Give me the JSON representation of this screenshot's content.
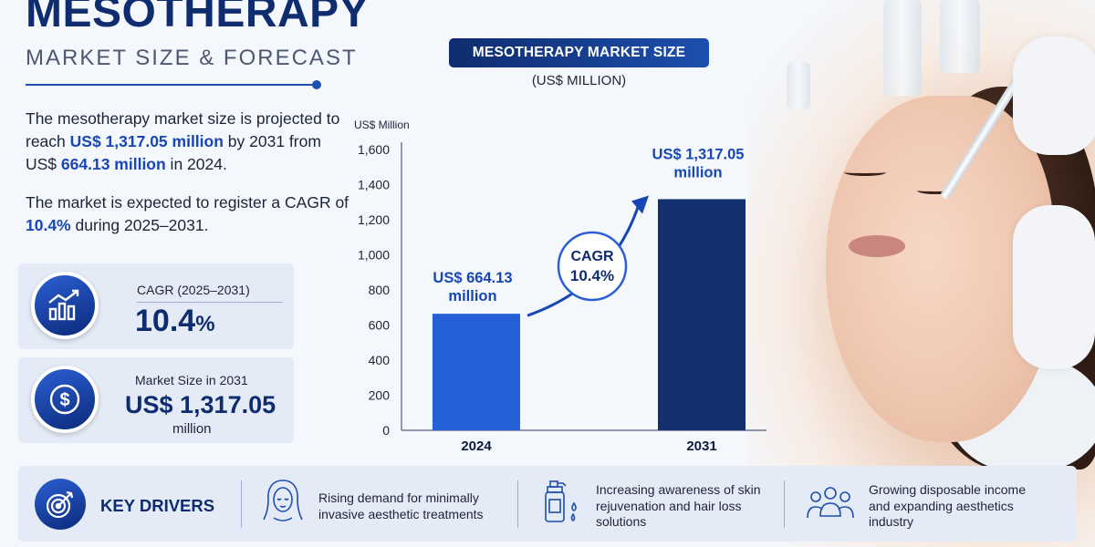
{
  "header": {
    "title": "MESOTHERAPY",
    "subtitle": "MARKET SIZE & FORECAST"
  },
  "intro": {
    "p1_a": "The mesotherapy market size is projected to reach ",
    "p1_b": "US$ 1,317.05 million",
    "p1_c": " by 2031 from US$ ",
    "p1_d": "664.13 million",
    "p1_e": " in 2024.",
    "p2_a": "The market is expected to register a CAGR of ",
    "p2_b": "10.4%",
    "p2_c": " during 2025–2031."
  },
  "cards": {
    "cagr_label": "CAGR (2025–2031)",
    "cagr_value": "10.4",
    "cagr_unit": "%",
    "size_label": "Market Size in 2031",
    "size_value": "US$ 1,317.05",
    "size_unit": "million"
  },
  "chart_header": {
    "title": "MESOTHERAPY MARKET SIZE",
    "unit": "(US$ MILLION)"
  },
  "chart_data": {
    "type": "bar",
    "ylabel": "US$ Million",
    "categories": [
      "2024",
      "2031"
    ],
    "values": [
      664.13,
      1317.05
    ],
    "value_labels": [
      [
        "US$ 664.13",
        "million"
      ],
      [
        "US$ 1,317.05",
        "million"
      ]
    ],
    "yticks": [
      "0",
      "200",
      "400",
      "600",
      "800",
      "1,000",
      "1,200",
      "1,400",
      "1,600"
    ],
    "ylim": [
      0,
      1600
    ],
    "cagr_badge": [
      "CAGR",
      "10.4%"
    ],
    "colors": {
      "bar_2024": "#2460d8",
      "bar_2031": "#12306f",
      "accent": "#1747b5"
    }
  },
  "drivers": {
    "title": "KEY DRIVERS",
    "items": [
      {
        "icon": "woman-face-icon",
        "text": [
          "Rising demand for minimally",
          "invasive aesthetic treatments"
        ]
      },
      {
        "icon": "serum-bottle-icon",
        "text": [
          "Increasing awareness of skin",
          "rejuvenation and hair loss",
          "solutions"
        ]
      },
      {
        "icon": "people-group-icon",
        "text": [
          "Growing disposable income",
          "and expanding aesthetics",
          "industry"
        ]
      }
    ]
  }
}
